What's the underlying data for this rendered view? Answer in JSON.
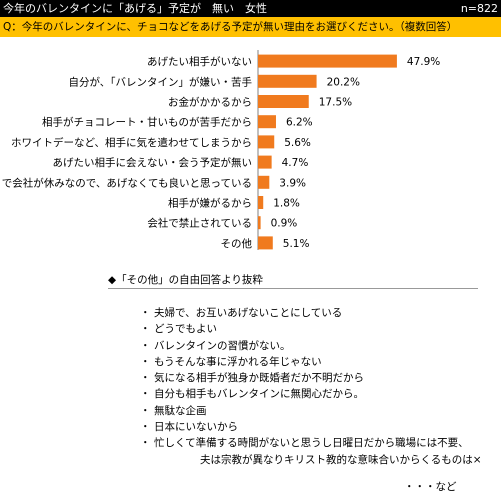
{
  "header": {
    "title": "今年のバレンタインに「あげる」予定が　無い　女性",
    "sample": "n=822"
  },
  "question": "Q：今年のバレンタインに、チョコなどをあげる予定が無い理由をお選びください。（複数回答）",
  "colors": {
    "bar": "#F07A1E",
    "header_bg": "#000000",
    "question_bg": "#FFC000"
  },
  "chart_data": {
    "type": "bar",
    "orientation": "horizontal",
    "categories": [
      "あげたい相手がいない",
      "自分が、「バレンタイン」が嫌い・苦手",
      "お金がかかるから",
      "相手がチョコレート・甘いものが苦手だから",
      "ホワイトデーなど、相手に気を遣わせてしまうから",
      "あげたい相手に会えない・会う予定が無い",
      "日曜日で会社が休みなので、あげなくても良いと思っている",
      "相手が嫌がるから",
      "会社で禁止されている",
      "その他"
    ],
    "values": [
      47.9,
      20.2,
      17.5,
      6.2,
      5.6,
      4.7,
      3.9,
      1.8,
      0.9,
      5.1
    ],
    "value_labels": [
      "47.9%",
      "20.2%",
      "17.5%",
      "6.2%",
      "5.6%",
      "4.7%",
      "3.9%",
      "1.8%",
      "0.9%",
      "5.1%"
    ],
    "xlim": [
      0,
      50
    ]
  },
  "other_section": {
    "heading": "◆「その他」の自由回答より抜粋",
    "answers": [
      {
        "bullet": "・",
        "text": "夫婦で、お互いあげないことにしている"
      },
      {
        "bullet": "・",
        "text": "どうでもよい"
      },
      {
        "bullet": "・",
        "text": "バレンタインの習慣がない。"
      },
      {
        "bullet": "・",
        "text": "もうそんな事に浮かれる年じゃない"
      },
      {
        "bullet": "・",
        "text": "気になる相手が独身か既婚者だか不明だから"
      },
      {
        "bullet": "・",
        "text": "自分も相手もバレンタインに無関心だから。"
      },
      {
        "bullet": "・",
        "text": "無駄な企画"
      },
      {
        "bullet": "・",
        "text": "日本にいないから"
      },
      {
        "bullet": "・",
        "text": "忙しくて準備する時間がないと思うし日曜日だから職場には不要、"
      },
      {
        "bullet": "",
        "text": "夫は宗教が異なりキリスト教的な意味合いからくるものは×"
      }
    ],
    "etc": "・・・など"
  }
}
